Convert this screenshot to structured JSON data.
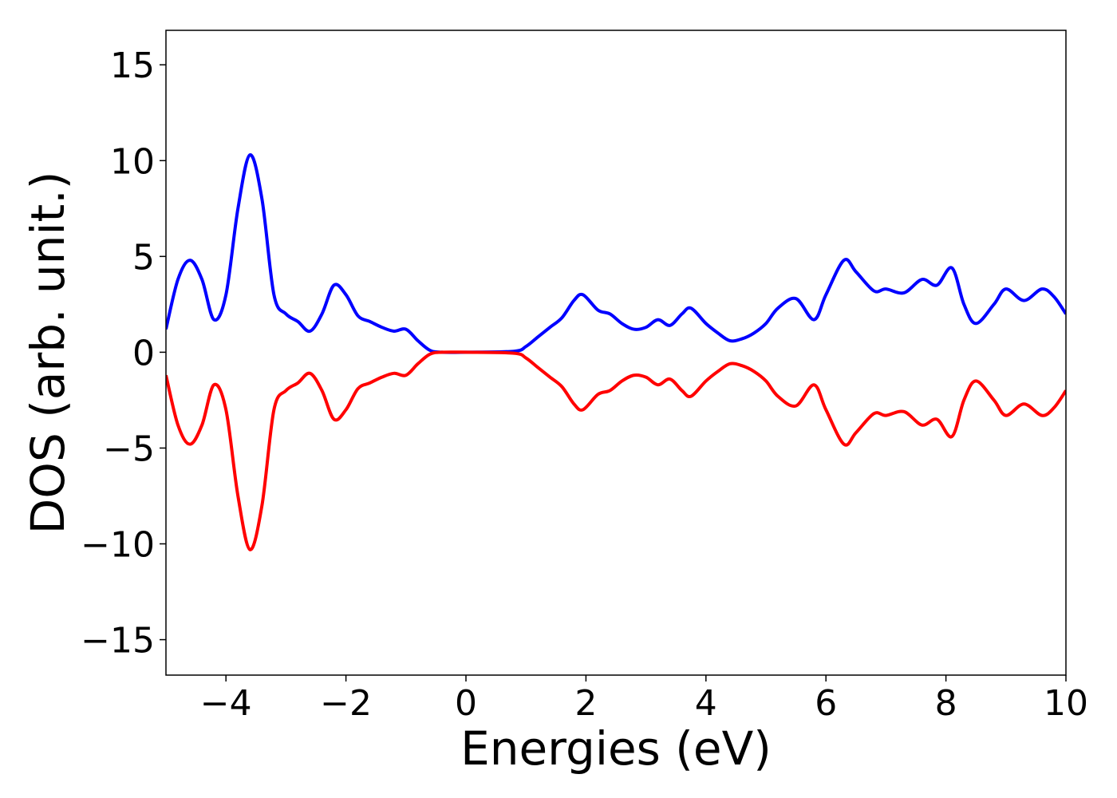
{
  "chart_data": {
    "type": "line",
    "xlabel": "Energies (eV)",
    "ylabel": "DOS (arb. unit.)",
    "x": [
      -5,
      -4.8,
      -4.6,
      -4.4,
      -4.2,
      -4.0,
      -3.8,
      -3.6,
      -3.4,
      -3.2,
      -3.0,
      -2.8,
      -2.6,
      -2.4,
      -2.2,
      -2.0,
      -1.8,
      -1.6,
      -1.4,
      -1.2,
      -1.0,
      -0.8,
      -0.6,
      -0.4,
      0,
      0.8,
      1.0,
      1.2,
      1.4,
      1.6,
      1.8,
      1.95,
      2.2,
      2.4,
      2.6,
      2.8,
      3.0,
      3.2,
      3.4,
      3.6,
      3.75,
      4.0,
      4.2,
      4.4,
      4.6,
      4.8,
      5.0,
      5.2,
      5.5,
      5.8,
      6.0,
      6.3,
      6.5,
      6.8,
      7.0,
      7.3,
      7.6,
      7.85,
      8.1,
      8.3,
      8.5,
      8.8,
      9.0,
      9.3,
      9.6,
      9.8,
      10
    ],
    "series": [
      {
        "color": "#0000ff",
        "values": [
          1.2,
          3.8,
          4.8,
          3.8,
          1.7,
          3.0,
          7.5,
          10.3,
          8.0,
          3.0,
          2.0,
          1.6,
          1.1,
          2.0,
          3.5,
          3.0,
          1.9,
          1.6,
          1.3,
          1.1,
          1.2,
          0.6,
          0.1,
          0,
          0,
          0.05,
          0.3,
          0.8,
          1.3,
          1.8,
          2.7,
          3.0,
          2.2,
          2.0,
          1.5,
          1.2,
          1.3,
          1.7,
          1.4,
          2.0,
          2.3,
          1.5,
          1.0,
          0.6,
          0.7,
          1.0,
          1.5,
          2.3,
          2.8,
          1.7,
          3.0,
          4.8,
          4.2,
          3.2,
          3.3,
          3.1,
          3.8,
          3.5,
          4.4,
          2.5,
          1.5,
          2.5,
          3.3,
          2.7,
          3.3,
          2.9,
          2.0
        ]
      },
      {
        "color": "#ff0000",
        "values": [
          -1.2,
          -3.8,
          -4.8,
          -3.8,
          -1.7,
          -3.0,
          -7.5,
          -10.3,
          -8.0,
          -3.0,
          -2.0,
          -1.6,
          -1.1,
          -2.0,
          -3.5,
          -3.0,
          -1.9,
          -1.6,
          -1.3,
          -1.1,
          -1.2,
          -0.6,
          -0.1,
          0,
          0,
          -0.05,
          -0.3,
          -0.8,
          -1.3,
          -1.8,
          -2.7,
          -3.0,
          -2.2,
          -2.0,
          -1.5,
          -1.2,
          -1.3,
          -1.7,
          -1.4,
          -2.0,
          -2.3,
          -1.5,
          -1.0,
          -0.6,
          -0.7,
          -1.0,
          -1.5,
          -2.3,
          -2.8,
          -1.7,
          -3.0,
          -4.8,
          -4.2,
          -3.2,
          -3.3,
          -3.1,
          -3.8,
          -3.5,
          -4.4,
          -2.5,
          -1.5,
          -2.5,
          -3.3,
          -2.7,
          -3.3,
          -2.9,
          -2.0
        ]
      }
    ],
    "xlim": [
      -5,
      10
    ],
    "xticks": [
      {
        "value": -4,
        "label": "−4"
      },
      {
        "value": -2,
        "label": "−2"
      },
      0,
      2,
      4,
      6,
      8,
      10
    ],
    "ylim": [
      -16.85,
      16.8
    ],
    "yticks": [
      {
        "value": -15,
        "label": "−15"
      },
      {
        "value": -10,
        "label": "−10"
      },
      {
        "value": -5,
        "label": "−5"
      },
      0,
      5,
      10,
      15
    ]
  }
}
